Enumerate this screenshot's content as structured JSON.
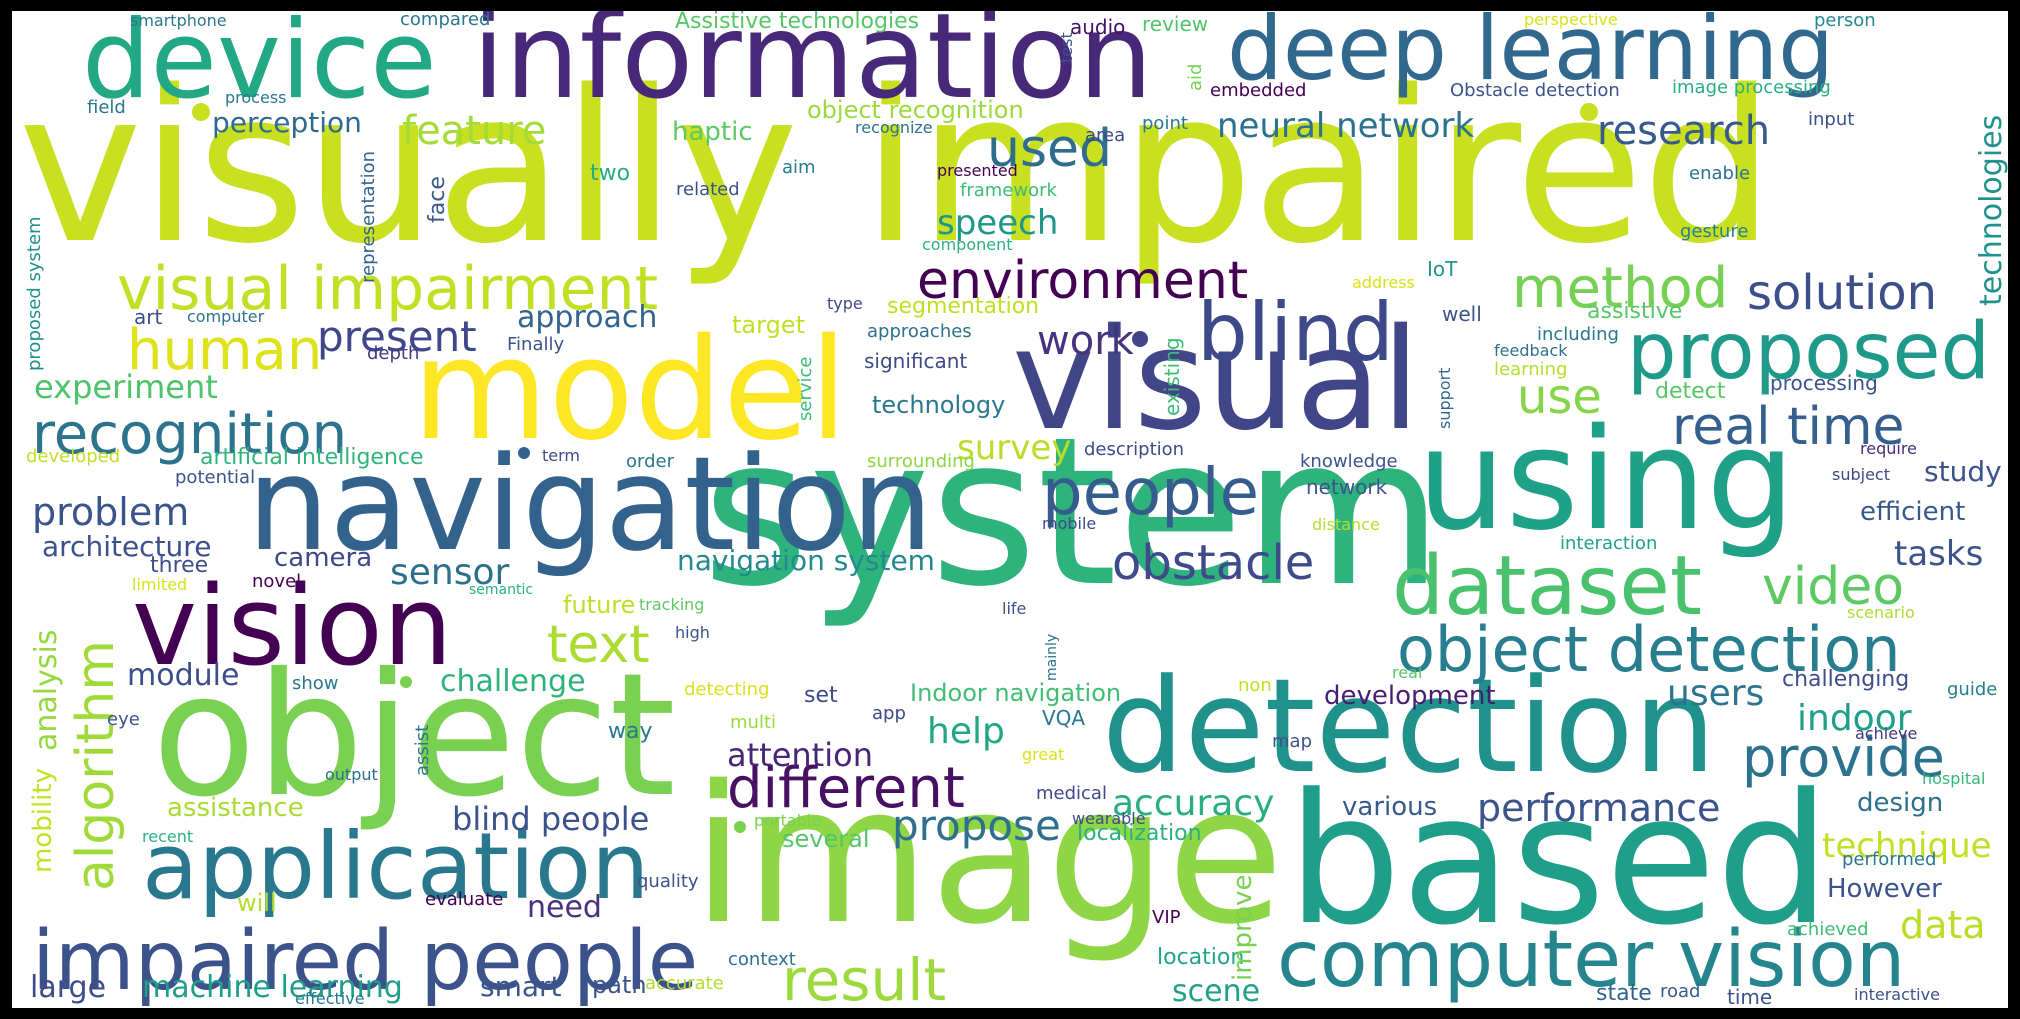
{
  "words": [
    {
      "text": "visually impaired",
      "color": "#c8e020"
    },
    {
      "text": "system",
      "color": "#2eb37c"
    },
    {
      "text": "image",
      "color": "#8ed645"
    },
    {
      "text": "object",
      "color": "#7ad151"
    },
    {
      "text": "based",
      "color": "#1f9e89"
    },
    {
      "text": "model",
      "color": "#fde725"
    },
    {
      "text": "visual",
      "color": "#404688"
    },
    {
      "text": "using",
      "color": "#1fa187"
    },
    {
      "text": "navigation",
      "color": "#33638d"
    },
    {
      "text": "detection",
      "color": "#20928c"
    },
    {
      "text": "information",
      "color": "#482878"
    },
    {
      "text": "device",
      "color": "#22a884"
    },
    {
      "text": "deep learning",
      "color": "#31688e"
    },
    {
      "text": "vision",
      "color": "#440154"
    },
    {
      "text": "application",
      "color": "#2a788e"
    },
    {
      "text": "computer vision",
      "color": "#25858e"
    },
    {
      "text": "impaired people",
      "color": "#3b528b"
    },
    {
      "text": "dataset",
      "color": "#4ac16d"
    },
    {
      "text": "proposed",
      "color": "#1f9a8a"
    },
    {
      "text": "blind",
      "color": "#3e4989"
    },
    {
      "text": "different",
      "color": "#471063"
    },
    {
      "text": "people",
      "color": "#365c8d"
    },
    {
      "text": "object detection",
      "color": "#287d8e"
    },
    {
      "text": "visual impairment",
      "color": "#c2df23"
    },
    {
      "text": "provide",
      "color": "#2c728e"
    },
    {
      "text": "recognition",
      "color": "#2c738e"
    },
    {
      "text": "real time",
      "color": "#35608d"
    },
    {
      "text": "human",
      "color": "#dde318"
    },
    {
      "text": "method",
      "color": "#75d054"
    },
    {
      "text": "environment",
      "color": "#440154"
    },
    {
      "text": "result",
      "color": "#9bd93c"
    },
    {
      "text": "video",
      "color": "#5ec962"
    },
    {
      "text": "obstacle",
      "color": "#3e4a89"
    },
    {
      "text": "text",
      "color": "#addc30"
    },
    {
      "text": "solution",
      "color": "#3c4f8a"
    },
    {
      "text": "algorithm",
      "color": "#9fda3a"
    },
    {
      "text": "application_",
      "color": "#2a788e"
    },
    {
      "text": "analysis",
      "color": "#95d840"
    },
    {
      "text": "used",
      "color": "#2f6c8e"
    },
    {
      "text": "use",
      "color": "#86d549"
    },
    {
      "text": "propose",
      "color": "#2e6f8e"
    },
    {
      "text": "present",
      "color": "#3f4788"
    },
    {
      "text": "feature",
      "color": "#a5db36"
    },
    {
      "text": "research",
      "color": "#38598c"
    },
    {
      "text": "work",
      "color": "#46337e"
    },
    {
      "text": "accuracy",
      "color": "#29af7f"
    },
    {
      "text": "performance",
      "color": "#3b528b"
    },
    {
      "text": "data",
      "color": "#bade28"
    },
    {
      "text": "neural network",
      "color": "#2c728e"
    },
    {
      "text": "technologies",
      "color": "#21918c"
    },
    {
      "text": "problem",
      "color": "#3a548c"
    },
    {
      "text": "sensor",
      "color": "#2d708e"
    },
    {
      "text": "speech",
      "color": "#1f968b"
    },
    {
      "text": "survey",
      "color": "#b8de29"
    },
    {
      "text": "users",
      "color": "#2b758e"
    },
    {
      "text": "indoor",
      "color": "#1f9f88"
    },
    {
      "text": "help",
      "color": "#21a685"
    },
    {
      "text": "attention",
      "color": "#482576"
    },
    {
      "text": "technique",
      "color": "#c2df23"
    },
    {
      "text": "machine learning",
      "color": "#1f9e89"
    },
    {
      "text": "blind people",
      "color": "#3b518b"
    },
    {
      "text": "experiment",
      "color": "#4ec36b"
    },
    {
      "text": "perception",
      "color": "#2f6b8e"
    },
    {
      "text": "approach",
      "color": "#32648e"
    },
    {
      "text": "module",
      "color": "#3d4e8a"
    },
    {
      "text": "challenge",
      "color": "#2db27d"
    },
    {
      "text": "architecture",
      "color": "#3c508b"
    },
    {
      "text": "navigation system",
      "color": "#23898e"
    },
    {
      "text": "tasks",
      "color": "#3a538b"
    },
    {
      "text": "mobility",
      "color": "#c5e021"
    },
    {
      "text": "haptic",
      "color": "#5ec962"
    },
    {
      "text": "object recognition",
      "color": "#9bd93c"
    },
    {
      "text": "Assistive technologies",
      "color": "#56c667"
    },
    {
      "text": "camera",
      "color": "#3f4889"
    },
    {
      "text": "scene",
      "color": "#1fa187"
    },
    {
      "text": "smart",
      "color": "#3a548c"
    },
    {
      "text": "large",
      "color": "#3e4c8a"
    },
    {
      "text": "need",
      "color": "#46327e"
    },
    {
      "text": "study",
      "color": "#3b528b"
    },
    {
      "text": "efficient",
      "color": "#38588c"
    },
    {
      "text": "design",
      "color": "#2d718e"
    },
    {
      "text": "However",
      "color": "#3b528b"
    },
    {
      "text": "various",
      "color": "#37598c"
    },
    {
      "text": "development",
      "color": "#481f70"
    },
    {
      "text": "segmentation",
      "color": "#c2df23"
    },
    {
      "text": "assistance",
      "color": "#a8db34"
    },
    {
      "text": "future",
      "color": "#bddf26"
    },
    {
      "text": "Indoor navigation",
      "color": "#40bd72"
    },
    {
      "text": "localization",
      "color": "#2ab07f"
    },
    {
      "text": "location",
      "color": "#21a685"
    },
    {
      "text": "improve",
      "color": "#7ad151"
    },
    {
      "text": "path",
      "color": "#3b528b"
    },
    {
      "text": "technology",
      "color": "#2a788e"
    },
    {
      "text": "target",
      "color": "#c2df23"
    },
    {
      "text": "way",
      "color": "#2a778e"
    },
    {
      "text": "set",
      "color": "#3f4889"
    },
    {
      "text": "several",
      "color": "#54c568"
    },
    {
      "text": "two",
      "color": "#25ab82"
    },
    {
      "text": "three",
      "color": "#3d4e8a"
    },
    {
      "text": "artificial intelligence",
      "color": "#2fb47c"
    },
    {
      "text": "face",
      "color": "#365d8d"
    },
    {
      "text": "representation",
      "color": "#33638d"
    },
    {
      "text": "proposed system",
      "color": "#21918c"
    },
    {
      "text": "art",
      "color": "#3e4c8a"
    },
    {
      "text": "computer",
      "color": "#2c728e"
    },
    {
      "text": "depth",
      "color": "#443983"
    },
    {
      "text": "Finally",
      "color": "#3b528b"
    },
    {
      "text": "approaches",
      "color": "#2d718e"
    },
    {
      "text": "significant",
      "color": "#3e4a89"
    },
    {
      "text": "service",
      "color": "#3dbc74"
    },
    {
      "text": "type",
      "color": "#3e4989"
    },
    {
      "text": "existing",
      "color": "#3dbc74"
    },
    {
      "text": "IoT",
      "color": "#1f968b"
    },
    {
      "text": "address",
      "color": "#d8e219"
    },
    {
      "text": "well",
      "color": "#3b528b"
    },
    {
      "text": "including",
      "color": "#2a788e"
    },
    {
      "text": "feedback",
      "color": "#2c728e"
    },
    {
      "text": "learning",
      "color": "#b5de2b"
    },
    {
      "text": "support",
      "color": "#31678e"
    },
    {
      "text": "assistive",
      "color": "#56c667"
    },
    {
      "text": "detect",
      "color": "#58c765"
    },
    {
      "text": "processing",
      "color": "#3b528b"
    },
    {
      "text": "require",
      "color": "#472d7b"
    },
    {
      "text": "subject",
      "color": "#3e4989"
    },
    {
      "text": "interaction",
      "color": "#1fa188"
    },
    {
      "text": "scenario",
      "color": "#addc30"
    },
    {
      "text": "challenging",
      "color": "#3d4e8a"
    },
    {
      "text": "guide",
      "color": "#277f8e"
    },
    {
      "text": "achieve",
      "color": "#46337e"
    },
    {
      "text": "hospital",
      "color": "#35b779"
    },
    {
      "text": "performed",
      "color": "#2a788e"
    },
    {
      "text": "achieved",
      "color": "#3dbc74"
    },
    {
      "text": "state",
      "color": "#33638d"
    },
    {
      "text": "road",
      "color": "#365c8d"
    },
    {
      "text": "time",
      "color": "#3b528b"
    },
    {
      "text": "interactive",
      "color": "#3b528b"
    },
    {
      "text": "smartphone",
      "color": "#2a788e"
    },
    {
      "text": "compared",
      "color": "#2a788e"
    },
    {
      "text": "test",
      "color": "#3b528b"
    },
    {
      "text": "audio",
      "color": "#471063"
    },
    {
      "text": "review",
      "color": "#50c46a"
    },
    {
      "text": "aid",
      "color": "#7ad151"
    },
    {
      "text": "perspective",
      "color": "#d8e219"
    },
    {
      "text": "person",
      "color": "#238a8d"
    },
    {
      "text": "field",
      "color": "#2a788e"
    },
    {
      "text": "process",
      "color": "#2a788e"
    },
    {
      "text": "embedded",
      "color": "#440154"
    },
    {
      "text": "Obstacle detection",
      "color": "#3b528b"
    },
    {
      "text": "image processing",
      "color": "#2ab07f"
    },
    {
      "text": "recognize",
      "color": "#2c728e"
    },
    {
      "text": "area",
      "color": "#3e4989"
    },
    {
      "text": "point",
      "color": "#2a788e"
    },
    {
      "text": "input",
      "color": "#3b528b"
    },
    {
      "text": "aim",
      "color": "#277f8e"
    },
    {
      "text": "presented",
      "color": "#440154"
    },
    {
      "text": "enable",
      "color": "#2c728e"
    },
    {
      "text": "related",
      "color": "#3b528b"
    },
    {
      "text": "framework",
      "color": "#3dbc74"
    },
    {
      "text": "component",
      "color": "#2ab07f"
    },
    {
      "text": "gesture",
      "color": "#277f8e"
    },
    {
      "text": "developed",
      "color": "#c2df23"
    },
    {
      "text": "potential",
      "color": "#3a548c"
    },
    {
      "text": "term",
      "color": "#3e4989"
    },
    {
      "text": "order",
      "color": "#2a788e"
    },
    {
      "text": "surrounding",
      "color": "#8ed645"
    },
    {
      "text": "description",
      "color": "#3e4a89"
    },
    {
      "text": "knowledge",
      "color": "#3b528b"
    },
    {
      "text": "network",
      "color": "#3b528b"
    },
    {
      "text": "mobile",
      "color": "#3e4989"
    },
    {
      "text": "distance",
      "color": "#b5de2b"
    },
    {
      "text": "limited",
      "color": "#d8e219"
    },
    {
      "text": "novel",
      "color": "#440154"
    },
    {
      "text": "semantic",
      "color": "#2ab07f"
    },
    {
      "text": "tracking",
      "color": "#5ec962"
    },
    {
      "text": "life",
      "color": "#3b528b"
    },
    {
      "text": "mainly",
      "color": "#2c728e"
    },
    {
      "text": "high",
      "color": "#3b528b"
    },
    {
      "text": "real",
      "color": "#56c667"
    },
    {
      "text": "non",
      "color": "#c2df23"
    },
    {
      "text": "eye",
      "color": "#3b528b"
    },
    {
      "text": "show",
      "color": "#2a788e"
    },
    {
      "text": "detecting",
      "color": "#d8e219"
    },
    {
      "text": "multi",
      "color": "#9bd93c"
    },
    {
      "text": "app",
      "color": "#3e4989"
    },
    {
      "text": "VQA",
      "color": "#2a788e"
    },
    {
      "text": "map",
      "color": "#3b528b"
    },
    {
      "text": "assist",
      "color": "#2c728e"
    },
    {
      "text": "great",
      "color": "#d8e219"
    },
    {
      "text": "output",
      "color": "#2c728e"
    },
    {
      "text": "medical",
      "color": "#3e4a89"
    },
    {
      "text": "portable",
      "color": "#7ad151"
    },
    {
      "text": "wearable",
      "color": "#3e4989"
    },
    {
      "text": "recent",
      "color": "#2ab07f"
    },
    {
      "text": "quality",
      "color": "#3b528b"
    },
    {
      "text": "evaluate",
      "color": "#440154"
    },
    {
      "text": "will",
      "color": "#b5de2b"
    },
    {
      "text": "VIP",
      "color": "#440154"
    },
    {
      "text": "context",
      "color": "#2c728e"
    },
    {
      "text": "accurate",
      "color": "#b5de2b"
    },
    {
      "text": "effective",
      "color": "#2a788e"
    }
  ]
}
